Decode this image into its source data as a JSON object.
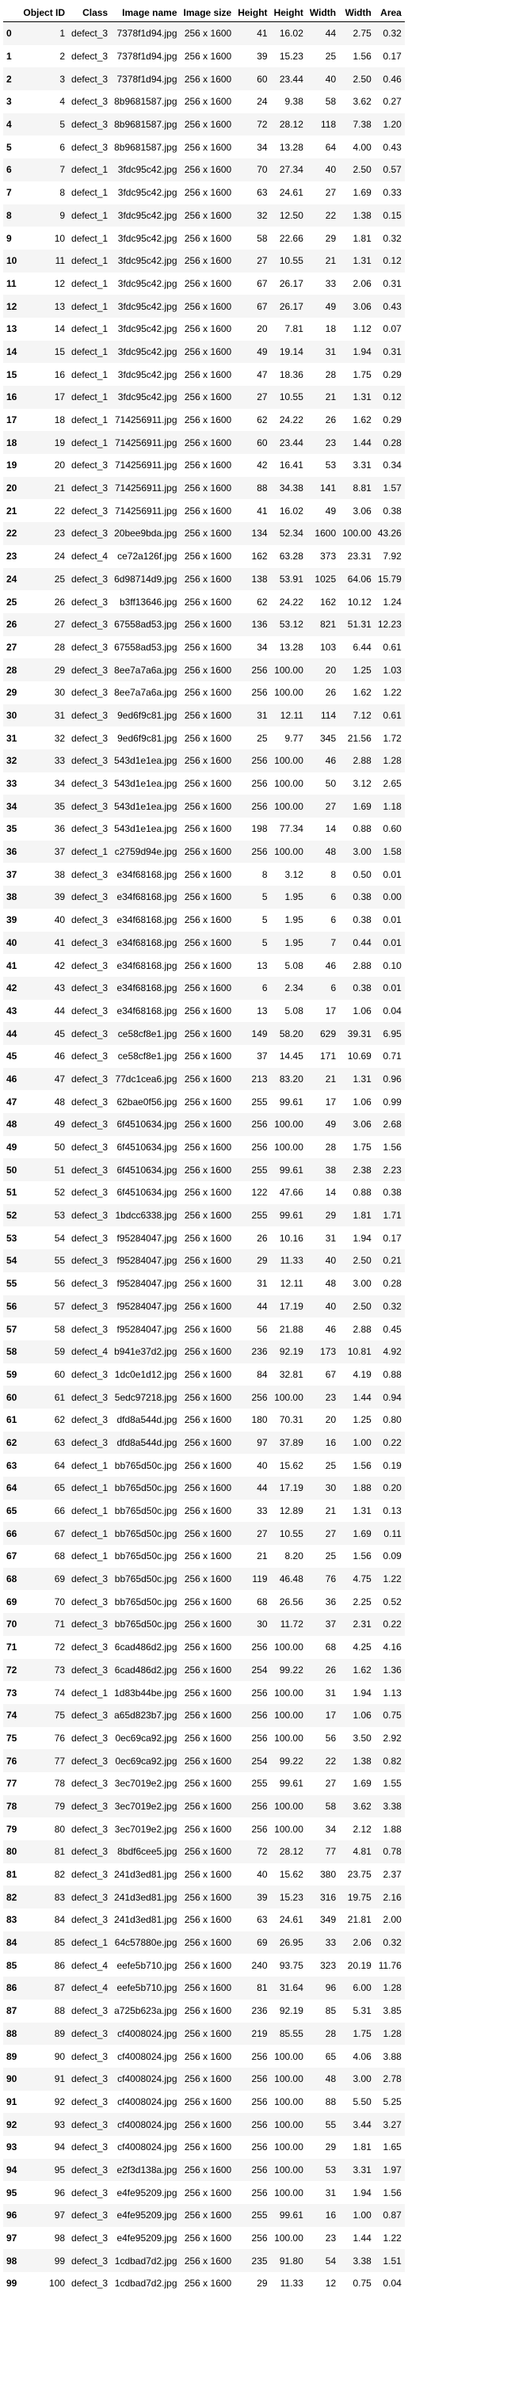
{
  "columns": [
    "",
    "Object ID",
    "Class",
    "Image name",
    "Image size",
    "Height",
    "Height",
    "Width",
    "Width",
    "Area"
  ],
  "rows": [
    [
      "0",
      "1",
      "defect_3",
      "7378f1d94.jpg",
      "256 x 1600",
      "41",
      "16.02",
      "44",
      "2.75",
      "0.32"
    ],
    [
      "1",
      "2",
      "defect_3",
      "7378f1d94.jpg",
      "256 x 1600",
      "39",
      "15.23",
      "25",
      "1.56",
      "0.17"
    ],
    [
      "2",
      "3",
      "defect_3",
      "7378f1d94.jpg",
      "256 x 1600",
      "60",
      "23.44",
      "40",
      "2.50",
      "0.46"
    ],
    [
      "3",
      "4",
      "defect_3",
      "8b9681587.jpg",
      "256 x 1600",
      "24",
      "9.38",
      "58",
      "3.62",
      "0.27"
    ],
    [
      "4",
      "5",
      "defect_3",
      "8b9681587.jpg",
      "256 x 1600",
      "72",
      "28.12",
      "118",
      "7.38",
      "1.20"
    ],
    [
      "5",
      "6",
      "defect_3",
      "8b9681587.jpg",
      "256 x 1600",
      "34",
      "13.28",
      "64",
      "4.00",
      "0.43"
    ],
    [
      "6",
      "7",
      "defect_1",
      "3fdc95c42.jpg",
      "256 x 1600",
      "70",
      "27.34",
      "40",
      "2.50",
      "0.57"
    ],
    [
      "7",
      "8",
      "defect_1",
      "3fdc95c42.jpg",
      "256 x 1600",
      "63",
      "24.61",
      "27",
      "1.69",
      "0.33"
    ],
    [
      "8",
      "9",
      "defect_1",
      "3fdc95c42.jpg",
      "256 x 1600",
      "32",
      "12.50",
      "22",
      "1.38",
      "0.15"
    ],
    [
      "9",
      "10",
      "defect_1",
      "3fdc95c42.jpg",
      "256 x 1600",
      "58",
      "22.66",
      "29",
      "1.81",
      "0.32"
    ],
    [
      "10",
      "11",
      "defect_1",
      "3fdc95c42.jpg",
      "256 x 1600",
      "27",
      "10.55",
      "21",
      "1.31",
      "0.12"
    ],
    [
      "11",
      "12",
      "defect_1",
      "3fdc95c42.jpg",
      "256 x 1600",
      "67",
      "26.17",
      "33",
      "2.06",
      "0.31"
    ],
    [
      "12",
      "13",
      "defect_1",
      "3fdc95c42.jpg",
      "256 x 1600",
      "67",
      "26.17",
      "49",
      "3.06",
      "0.43"
    ],
    [
      "13",
      "14",
      "defect_1",
      "3fdc95c42.jpg",
      "256 x 1600",
      "20",
      "7.81",
      "18",
      "1.12",
      "0.07"
    ],
    [
      "14",
      "15",
      "defect_1",
      "3fdc95c42.jpg",
      "256 x 1600",
      "49",
      "19.14",
      "31",
      "1.94",
      "0.31"
    ],
    [
      "15",
      "16",
      "defect_1",
      "3fdc95c42.jpg",
      "256 x 1600",
      "47",
      "18.36",
      "28",
      "1.75",
      "0.29"
    ],
    [
      "16",
      "17",
      "defect_1",
      "3fdc95c42.jpg",
      "256 x 1600",
      "27",
      "10.55",
      "21",
      "1.31",
      "0.12"
    ],
    [
      "17",
      "18",
      "defect_1",
      "714256911.jpg",
      "256 x 1600",
      "62",
      "24.22",
      "26",
      "1.62",
      "0.29"
    ],
    [
      "18",
      "19",
      "defect_1",
      "714256911.jpg",
      "256 x 1600",
      "60",
      "23.44",
      "23",
      "1.44",
      "0.28"
    ],
    [
      "19",
      "20",
      "defect_3",
      "714256911.jpg",
      "256 x 1600",
      "42",
      "16.41",
      "53",
      "3.31",
      "0.34"
    ],
    [
      "20",
      "21",
      "defect_3",
      "714256911.jpg",
      "256 x 1600",
      "88",
      "34.38",
      "141",
      "8.81",
      "1.57"
    ],
    [
      "21",
      "22",
      "defect_3",
      "714256911.jpg",
      "256 x 1600",
      "41",
      "16.02",
      "49",
      "3.06",
      "0.38"
    ],
    [
      "22",
      "23",
      "defect_3",
      "20bee9bda.jpg",
      "256 x 1600",
      "134",
      "52.34",
      "1600",
      "100.00",
      "43.26"
    ],
    [
      "23",
      "24",
      "defect_4",
      "ce72a126f.jpg",
      "256 x 1600",
      "162",
      "63.28",
      "373",
      "23.31",
      "7.92"
    ],
    [
      "24",
      "25",
      "defect_3",
      "6d98714d9.jpg",
      "256 x 1600",
      "138",
      "53.91",
      "1025",
      "64.06",
      "15.79"
    ],
    [
      "25",
      "26",
      "defect_3",
      "b3ff13646.jpg",
      "256 x 1600",
      "62",
      "24.22",
      "162",
      "10.12",
      "1.24"
    ],
    [
      "26",
      "27",
      "defect_3",
      "67558ad53.jpg",
      "256 x 1600",
      "136",
      "53.12",
      "821",
      "51.31",
      "12.23"
    ],
    [
      "27",
      "28",
      "defect_3",
      "67558ad53.jpg",
      "256 x 1600",
      "34",
      "13.28",
      "103",
      "6.44",
      "0.61"
    ],
    [
      "28",
      "29",
      "defect_3",
      "8ee7a7a6a.jpg",
      "256 x 1600",
      "256",
      "100.00",
      "20",
      "1.25",
      "1.03"
    ],
    [
      "29",
      "30",
      "defect_3",
      "8ee7a7a6a.jpg",
      "256 x 1600",
      "256",
      "100.00",
      "26",
      "1.62",
      "1.22"
    ],
    [
      "30",
      "31",
      "defect_3",
      "9ed6f9c81.jpg",
      "256 x 1600",
      "31",
      "12.11",
      "114",
      "7.12",
      "0.61"
    ],
    [
      "31",
      "32",
      "defect_3",
      "9ed6f9c81.jpg",
      "256 x 1600",
      "25",
      "9.77",
      "345",
      "21.56",
      "1.72"
    ],
    [
      "32",
      "33",
      "defect_3",
      "543d1e1ea.jpg",
      "256 x 1600",
      "256",
      "100.00",
      "46",
      "2.88",
      "1.28"
    ],
    [
      "33",
      "34",
      "defect_3",
      "543d1e1ea.jpg",
      "256 x 1600",
      "256",
      "100.00",
      "50",
      "3.12",
      "2.65"
    ],
    [
      "34",
      "35",
      "defect_3",
      "543d1e1ea.jpg",
      "256 x 1600",
      "256",
      "100.00",
      "27",
      "1.69",
      "1.18"
    ],
    [
      "35",
      "36",
      "defect_3",
      "543d1e1ea.jpg",
      "256 x 1600",
      "198",
      "77.34",
      "14",
      "0.88",
      "0.60"
    ],
    [
      "36",
      "37",
      "defect_1",
      "c2759d94e.jpg",
      "256 x 1600",
      "256",
      "100.00",
      "48",
      "3.00",
      "1.58"
    ],
    [
      "37",
      "38",
      "defect_3",
      "e34f68168.jpg",
      "256 x 1600",
      "8",
      "3.12",
      "8",
      "0.50",
      "0.01"
    ],
    [
      "38",
      "39",
      "defect_3",
      "e34f68168.jpg",
      "256 x 1600",
      "5",
      "1.95",
      "6",
      "0.38",
      "0.00"
    ],
    [
      "39",
      "40",
      "defect_3",
      "e34f68168.jpg",
      "256 x 1600",
      "5",
      "1.95",
      "6",
      "0.38",
      "0.01"
    ],
    [
      "40",
      "41",
      "defect_3",
      "e34f68168.jpg",
      "256 x 1600",
      "5",
      "1.95",
      "7",
      "0.44",
      "0.01"
    ],
    [
      "41",
      "42",
      "defect_3",
      "e34f68168.jpg",
      "256 x 1600",
      "13",
      "5.08",
      "46",
      "2.88",
      "0.10"
    ],
    [
      "42",
      "43",
      "defect_3",
      "e34f68168.jpg",
      "256 x 1600",
      "6",
      "2.34",
      "6",
      "0.38",
      "0.01"
    ],
    [
      "43",
      "44",
      "defect_3",
      "e34f68168.jpg",
      "256 x 1600",
      "13",
      "5.08",
      "17",
      "1.06",
      "0.04"
    ],
    [
      "44",
      "45",
      "defect_3",
      "ce58cf8e1.jpg",
      "256 x 1600",
      "149",
      "58.20",
      "629",
      "39.31",
      "6.95"
    ],
    [
      "45",
      "46",
      "defect_3",
      "ce58cf8e1.jpg",
      "256 x 1600",
      "37",
      "14.45",
      "171",
      "10.69",
      "0.71"
    ],
    [
      "46",
      "47",
      "defect_3",
      "77dc1cea6.jpg",
      "256 x 1600",
      "213",
      "83.20",
      "21",
      "1.31",
      "0.96"
    ],
    [
      "47",
      "48",
      "defect_3",
      "62bae0f56.jpg",
      "256 x 1600",
      "255",
      "99.61",
      "17",
      "1.06",
      "0.99"
    ],
    [
      "48",
      "49",
      "defect_3",
      "6f4510634.jpg",
      "256 x 1600",
      "256",
      "100.00",
      "49",
      "3.06",
      "2.68"
    ],
    [
      "49",
      "50",
      "defect_3",
      "6f4510634.jpg",
      "256 x 1600",
      "256",
      "100.00",
      "28",
      "1.75",
      "1.56"
    ],
    [
      "50",
      "51",
      "defect_3",
      "6f4510634.jpg",
      "256 x 1600",
      "255",
      "99.61",
      "38",
      "2.38",
      "2.23"
    ],
    [
      "51",
      "52",
      "defect_3",
      "6f4510634.jpg",
      "256 x 1600",
      "122",
      "47.66",
      "14",
      "0.88",
      "0.38"
    ],
    [
      "52",
      "53",
      "defect_3",
      "1bdcc6338.jpg",
      "256 x 1600",
      "255",
      "99.61",
      "29",
      "1.81",
      "1.71"
    ],
    [
      "53",
      "54",
      "defect_3",
      "f95284047.jpg",
      "256 x 1600",
      "26",
      "10.16",
      "31",
      "1.94",
      "0.17"
    ],
    [
      "54",
      "55",
      "defect_3",
      "f95284047.jpg",
      "256 x 1600",
      "29",
      "11.33",
      "40",
      "2.50",
      "0.21"
    ],
    [
      "55",
      "56",
      "defect_3",
      "f95284047.jpg",
      "256 x 1600",
      "31",
      "12.11",
      "48",
      "3.00",
      "0.28"
    ],
    [
      "56",
      "57",
      "defect_3",
      "f95284047.jpg",
      "256 x 1600",
      "44",
      "17.19",
      "40",
      "2.50",
      "0.32"
    ],
    [
      "57",
      "58",
      "defect_3",
      "f95284047.jpg",
      "256 x 1600",
      "56",
      "21.88",
      "46",
      "2.88",
      "0.45"
    ],
    [
      "58",
      "59",
      "defect_4",
      "b941e37d2.jpg",
      "256 x 1600",
      "236",
      "92.19",
      "173",
      "10.81",
      "4.92"
    ],
    [
      "59",
      "60",
      "defect_3",
      "1dc0e1d12.jpg",
      "256 x 1600",
      "84",
      "32.81",
      "67",
      "4.19",
      "0.88"
    ],
    [
      "60",
      "61",
      "defect_3",
      "5edc97218.jpg",
      "256 x 1600",
      "256",
      "100.00",
      "23",
      "1.44",
      "0.94"
    ],
    [
      "61",
      "62",
      "defect_3",
      "dfd8a544d.jpg",
      "256 x 1600",
      "180",
      "70.31",
      "20",
      "1.25",
      "0.80"
    ],
    [
      "62",
      "63",
      "defect_3",
      "dfd8a544d.jpg",
      "256 x 1600",
      "97",
      "37.89",
      "16",
      "1.00",
      "0.22"
    ],
    [
      "63",
      "64",
      "defect_1",
      "bb765d50c.jpg",
      "256 x 1600",
      "40",
      "15.62",
      "25",
      "1.56",
      "0.19"
    ],
    [
      "64",
      "65",
      "defect_1",
      "bb765d50c.jpg",
      "256 x 1600",
      "44",
      "17.19",
      "30",
      "1.88",
      "0.20"
    ],
    [
      "65",
      "66",
      "defect_1",
      "bb765d50c.jpg",
      "256 x 1600",
      "33",
      "12.89",
      "21",
      "1.31",
      "0.13"
    ],
    [
      "66",
      "67",
      "defect_1",
      "bb765d50c.jpg",
      "256 x 1600",
      "27",
      "10.55",
      "27",
      "1.69",
      "0.11"
    ],
    [
      "67",
      "68",
      "defect_1",
      "bb765d50c.jpg",
      "256 x 1600",
      "21",
      "8.20",
      "25",
      "1.56",
      "0.09"
    ],
    [
      "68",
      "69",
      "defect_3",
      "bb765d50c.jpg",
      "256 x 1600",
      "119",
      "46.48",
      "76",
      "4.75",
      "1.22"
    ],
    [
      "69",
      "70",
      "defect_3",
      "bb765d50c.jpg",
      "256 x 1600",
      "68",
      "26.56",
      "36",
      "2.25",
      "0.52"
    ],
    [
      "70",
      "71",
      "defect_3",
      "bb765d50c.jpg",
      "256 x 1600",
      "30",
      "11.72",
      "37",
      "2.31",
      "0.22"
    ],
    [
      "71",
      "72",
      "defect_3",
      "6cad486d2.jpg",
      "256 x 1600",
      "256",
      "100.00",
      "68",
      "4.25",
      "4.16"
    ],
    [
      "72",
      "73",
      "defect_3",
      "6cad486d2.jpg",
      "256 x 1600",
      "254",
      "99.22",
      "26",
      "1.62",
      "1.36"
    ],
    [
      "73",
      "74",
      "defect_1",
      "1d83b44be.jpg",
      "256 x 1600",
      "256",
      "100.00",
      "31",
      "1.94",
      "1.13"
    ],
    [
      "74",
      "75",
      "defect_3",
      "a65d823b7.jpg",
      "256 x 1600",
      "256",
      "100.00",
      "17",
      "1.06",
      "0.75"
    ],
    [
      "75",
      "76",
      "defect_3",
      "0ec69ca92.jpg",
      "256 x 1600",
      "256",
      "100.00",
      "56",
      "3.50",
      "2.92"
    ],
    [
      "76",
      "77",
      "defect_3",
      "0ec69ca92.jpg",
      "256 x 1600",
      "254",
      "99.22",
      "22",
      "1.38",
      "0.82"
    ],
    [
      "77",
      "78",
      "defect_3",
      "3ec7019e2.jpg",
      "256 x 1600",
      "255",
      "99.61",
      "27",
      "1.69",
      "1.55"
    ],
    [
      "78",
      "79",
      "defect_3",
      "3ec7019e2.jpg",
      "256 x 1600",
      "256",
      "100.00",
      "58",
      "3.62",
      "3.38"
    ],
    [
      "79",
      "80",
      "defect_3",
      "3ec7019e2.jpg",
      "256 x 1600",
      "256",
      "100.00",
      "34",
      "2.12",
      "1.88"
    ],
    [
      "80",
      "81",
      "defect_3",
      "8bdf6cee5.jpg",
      "256 x 1600",
      "72",
      "28.12",
      "77",
      "4.81",
      "0.78"
    ],
    [
      "81",
      "82",
      "defect_3",
      "241d3ed81.jpg",
      "256 x 1600",
      "40",
      "15.62",
      "380",
      "23.75",
      "2.37"
    ],
    [
      "82",
      "83",
      "defect_3",
      "241d3ed81.jpg",
      "256 x 1600",
      "39",
      "15.23",
      "316",
      "19.75",
      "2.16"
    ],
    [
      "83",
      "84",
      "defect_3",
      "241d3ed81.jpg",
      "256 x 1600",
      "63",
      "24.61",
      "349",
      "21.81",
      "2.00"
    ],
    [
      "84",
      "85",
      "defect_1",
      "64c57880e.jpg",
      "256 x 1600",
      "69",
      "26.95",
      "33",
      "2.06",
      "0.32"
    ],
    [
      "85",
      "86",
      "defect_4",
      "eefe5b710.jpg",
      "256 x 1600",
      "240",
      "93.75",
      "323",
      "20.19",
      "11.76"
    ],
    [
      "86",
      "87",
      "defect_4",
      "eefe5b710.jpg",
      "256 x 1600",
      "81",
      "31.64",
      "96",
      "6.00",
      "1.28"
    ],
    [
      "87",
      "88",
      "defect_3",
      "a725b623a.jpg",
      "256 x 1600",
      "236",
      "92.19",
      "85",
      "5.31",
      "3.85"
    ],
    [
      "88",
      "89",
      "defect_3",
      "cf4008024.jpg",
      "256 x 1600",
      "219",
      "85.55",
      "28",
      "1.75",
      "1.28"
    ],
    [
      "89",
      "90",
      "defect_3",
      "cf4008024.jpg",
      "256 x 1600",
      "256",
      "100.00",
      "65",
      "4.06",
      "3.88"
    ],
    [
      "90",
      "91",
      "defect_3",
      "cf4008024.jpg",
      "256 x 1600",
      "256",
      "100.00",
      "48",
      "3.00",
      "2.78"
    ],
    [
      "91",
      "92",
      "defect_3",
      "cf4008024.jpg",
      "256 x 1600",
      "256",
      "100.00",
      "88",
      "5.50",
      "5.25"
    ],
    [
      "92",
      "93",
      "defect_3",
      "cf4008024.jpg",
      "256 x 1600",
      "256",
      "100.00",
      "55",
      "3.44",
      "3.27"
    ],
    [
      "93",
      "94",
      "defect_3",
      "cf4008024.jpg",
      "256 x 1600",
      "256",
      "100.00",
      "29",
      "1.81",
      "1.65"
    ],
    [
      "94",
      "95",
      "defect_3",
      "e2f3d138a.jpg",
      "256 x 1600",
      "256",
      "100.00",
      "53",
      "3.31",
      "1.97"
    ],
    [
      "95",
      "96",
      "defect_3",
      "e4fe95209.jpg",
      "256 x 1600",
      "256",
      "100.00",
      "31",
      "1.94",
      "1.56"
    ],
    [
      "96",
      "97",
      "defect_3",
      "e4fe95209.jpg",
      "256 x 1600",
      "255",
      "99.61",
      "16",
      "1.00",
      "0.87"
    ],
    [
      "97",
      "98",
      "defect_3",
      "e4fe95209.jpg",
      "256 x 1600",
      "256",
      "100.00",
      "23",
      "1.44",
      "1.22"
    ],
    [
      "98",
      "99",
      "defect_3",
      "1cdbad7d2.jpg",
      "256 x 1600",
      "235",
      "91.80",
      "54",
      "3.38",
      "1.51"
    ],
    [
      "99",
      "100",
      "defect_3",
      "1cdbad7d2.jpg",
      "256 x 1600",
      "29",
      "11.33",
      "12",
      "0.75",
      "0.04"
    ]
  ]
}
